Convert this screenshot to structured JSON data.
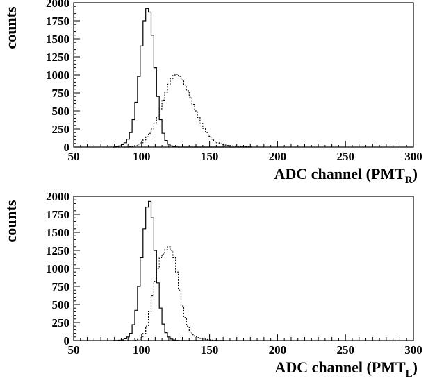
{
  "chart_data": [
    {
      "type": "line",
      "panel": "top",
      "xlabel": "ADC channel (PMT",
      "xlabel_sub": "R",
      "xlabel_close": ")",
      "ylabel": "counts",
      "xlim": [
        50,
        300
      ],
      "ylim": [
        0,
        2000
      ],
      "xticks": [
        50,
        100,
        150,
        200,
        250,
        300
      ],
      "yticks": [
        0,
        250,
        500,
        750,
        1000,
        1250,
        1500,
        1750,
        2000
      ],
      "grid": false,
      "x": [
        80,
        82,
        84,
        86,
        88,
        90,
        92,
        94,
        96,
        98,
        100,
        102,
        104,
        106,
        108,
        110,
        112,
        114,
        116,
        118,
        120,
        122,
        124,
        126,
        128,
        130,
        132,
        134,
        136,
        138,
        140,
        142,
        144,
        146,
        148,
        150,
        152,
        154,
        156,
        158,
        160,
        162,
        164,
        166,
        168,
        170,
        172,
        174,
        176,
        178,
        180
      ],
      "series": [
        {
          "style": "solid",
          "values": [
            0,
            5,
            15,
            35,
            60,
            110,
            200,
            380,
            620,
            980,
            1400,
            1750,
            1920,
            1870,
            1550,
            1100,
            700,
            380,
            190,
            90,
            40,
            15,
            5,
            2,
            0,
            0,
            0,
            0,
            0,
            0,
            0,
            0,
            0,
            0,
            0,
            0,
            0,
            0,
            0,
            0,
            0,
            0,
            0,
            0,
            0,
            0,
            0,
            0,
            0,
            0,
            0
          ]
        },
        {
          "style": "dotted",
          "values": [
            0,
            0,
            0,
            0,
            0,
            0,
            5,
            10,
            20,
            40,
            60,
            100,
            140,
            190,
            250,
            330,
            420,
            530,
            650,
            760,
            870,
            950,
            1000,
            1010,
            980,
            930,
            860,
            780,
            690,
            590,
            500,
            410,
            330,
            260,
            200,
            150,
            110,
            80,
            60,
            45,
            35,
            28,
            22,
            18,
            14,
            12,
            10,
            8,
            6,
            5,
            3
          ]
        }
      ]
    },
    {
      "type": "line",
      "panel": "bottom",
      "xlabel": "ADC channel (PMT",
      "xlabel_sub": "L",
      "xlabel_close": ")",
      "ylabel": "counts",
      "xlim": [
        50,
        300
      ],
      "ylim": [
        0,
        2000
      ],
      "xticks": [
        50,
        100,
        150,
        200,
        250,
        300
      ],
      "yticks": [
        0,
        250,
        500,
        750,
        1000,
        1250,
        1500,
        1750,
        2000
      ],
      "grid": false,
      "x": [
        80,
        82,
        84,
        86,
        88,
        90,
        92,
        94,
        96,
        98,
        100,
        102,
        104,
        106,
        108,
        110,
        112,
        114,
        116,
        118,
        120,
        122,
        124,
        126,
        128,
        130,
        132,
        134,
        136,
        138,
        140,
        142,
        144,
        146,
        148,
        150,
        152,
        154,
        156,
        158,
        160
      ],
      "series": [
        {
          "style": "solid",
          "values": [
            0,
            2,
            5,
            10,
            25,
            50,
            100,
            220,
            420,
            750,
            1150,
            1550,
            1850,
            1930,
            1700,
            1250,
            800,
            450,
            230,
            110,
            50,
            20,
            8,
            3,
            0,
            0,
            0,
            0,
            0,
            0,
            0,
            0,
            0,
            0,
            0,
            0,
            0,
            0,
            0,
            0,
            0
          ]
        },
        {
          "style": "dotted",
          "values": [
            0,
            0,
            0,
            0,
            0,
            0,
            0,
            0,
            5,
            15,
            40,
            100,
            200,
            400,
            620,
            820,
            1000,
            1150,
            1200,
            1260,
            1300,
            1250,
            1150,
            950,
            700,
            480,
            320,
            200,
            120,
            80,
            55,
            40,
            30,
            20,
            14,
            10,
            6,
            4,
            2,
            1,
            0
          ]
        }
      ]
    }
  ]
}
